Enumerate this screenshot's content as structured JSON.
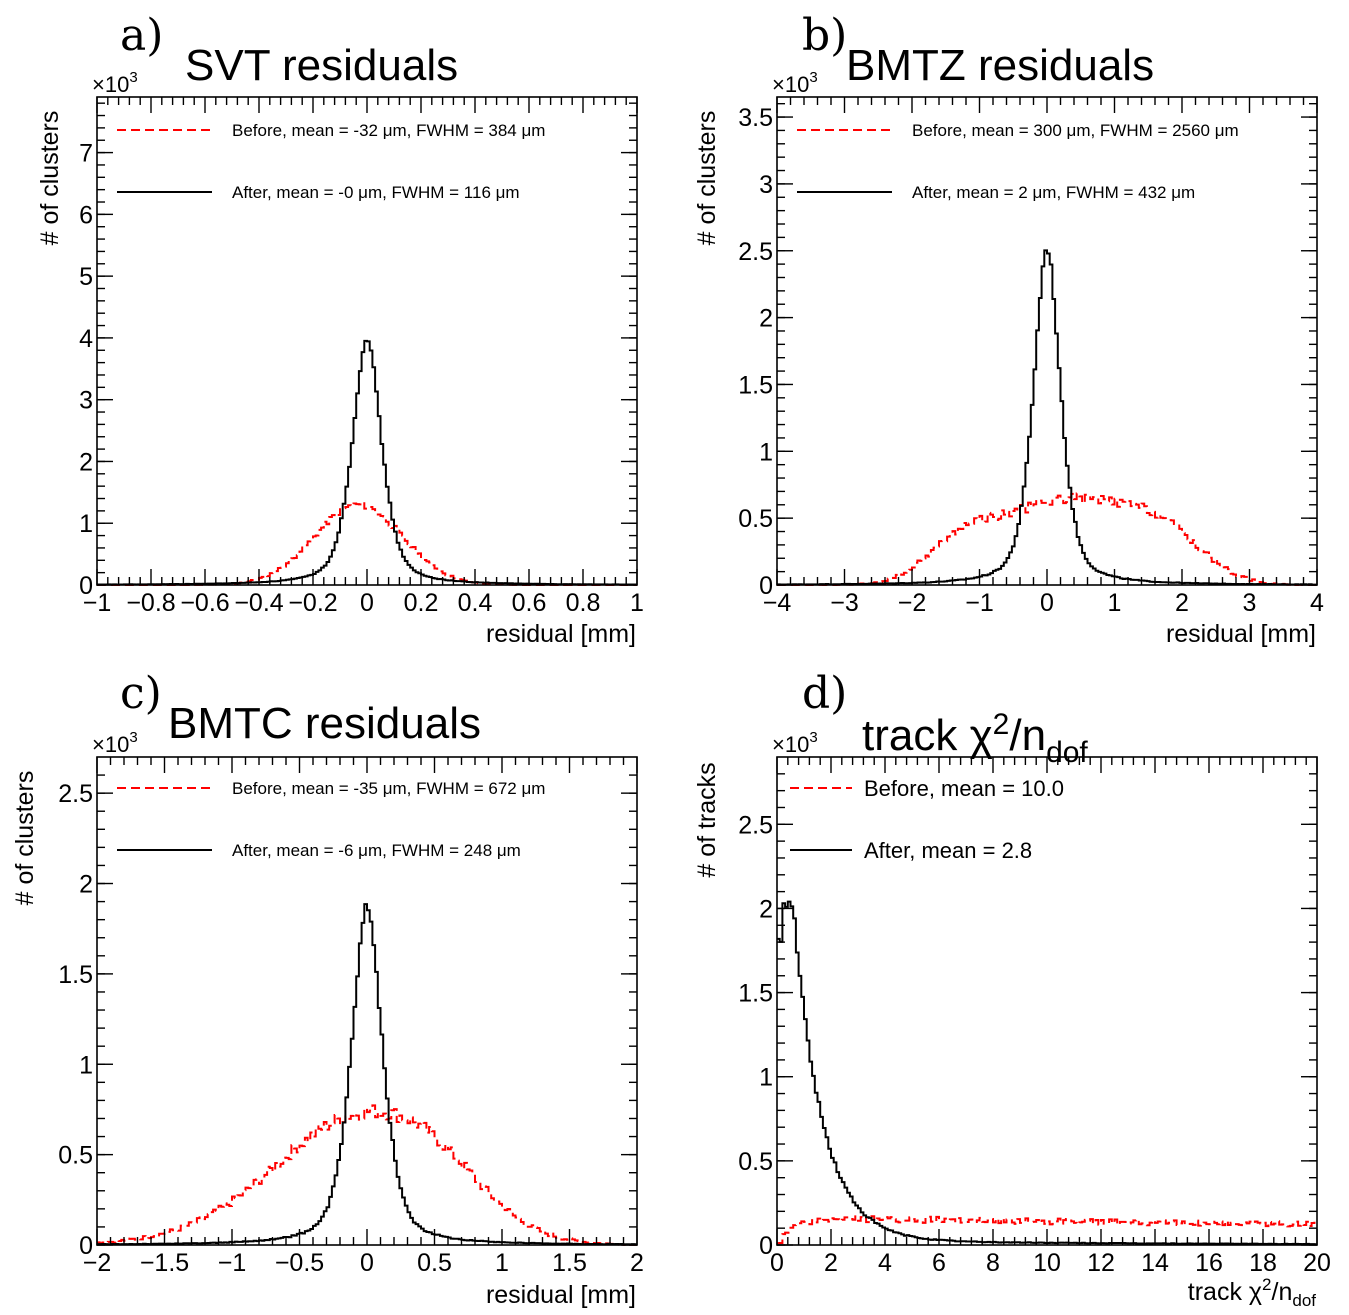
{
  "chart_data": [
    {
      "type": "histogram",
      "panel_label": "a)",
      "title": "SVT residuals",
      "xlabel": "residual [mm]",
      "ylabel": "# of clusters",
      "y_multiplier": "×10",
      "y_multiplier_exp": "3",
      "xlim": [
        -1,
        1
      ],
      "ylim": [
        0,
        7.9
      ],
      "x_ticks": [
        -1,
        -0.8,
        -0.6,
        -0.4,
        -0.2,
        0,
        0.2,
        0.4,
        0.6,
        0.8,
        1
      ],
      "x_tick_labels": [
        "−1",
        "−0.8",
        "−0.6",
        "−0.4",
        "−0.2",
        "0",
        "0.2",
        "0.4",
        "0.6",
        "0.8",
        "1"
      ],
      "y_ticks": [
        0,
        1,
        2,
        3,
        4,
        5,
        6,
        7
      ],
      "y_tick_labels": [
        "0",
        "1",
        "2",
        "3",
        "4",
        "5",
        "6",
        "7"
      ],
      "legend": "top-left inside",
      "series": [
        {
          "name": "Before, mean = -32 μm, FWHM = 384 μm",
          "color": "#ff0000",
          "style": "dashed",
          "shape": "gaussian",
          "peak": 1.3,
          "center": -0.032,
          "fwhm": 0.384
        },
        {
          "name": "After, mean = -0 μm, FWHM = 116 μm",
          "color": "#000000",
          "style": "solid",
          "shape": "peaked",
          "peak": 4.0,
          "center": 0,
          "fwhm": 0.116
        }
      ]
    },
    {
      "type": "histogram",
      "panel_label": "b)",
      "title": "BMTZ residuals",
      "xlabel": "residual [mm]",
      "ylabel": "# of clusters",
      "y_multiplier": "×10",
      "y_multiplier_exp": "3",
      "xlim": [
        -4,
        4
      ],
      "ylim": [
        0,
        3.65
      ],
      "x_ticks": [
        -4,
        -3,
        -2,
        -1,
        0,
        1,
        2,
        3,
        4
      ],
      "x_tick_labels": [
        "−4",
        "−3",
        "−2",
        "−1",
        "0",
        "1",
        "2",
        "3",
        "4"
      ],
      "y_ticks": [
        0,
        0.5,
        1,
        1.5,
        2,
        2.5,
        3,
        3.5
      ],
      "y_tick_labels": [
        "0",
        "0.5",
        "1",
        "1.5",
        "2",
        "2.5",
        "3",
        "3.5"
      ],
      "legend": "top-left inside",
      "series": [
        {
          "name": "Before, mean = 300 μm, FWHM = 2560 μm",
          "color": "#ff0000",
          "style": "dashed",
          "shape": "multi",
          "components": [
            [
              0.36,
              -1.2,
              0.55
            ],
            [
              0.48,
              0.65,
              0.75
            ],
            [
              0.33,
              1.75,
              0.6
            ],
            [
              0.27,
              -0.2,
              0.6
            ]
          ]
        },
        {
          "name": "After, mean = 2 μm, FWHM = 432 μm",
          "color": "#000000",
          "style": "solid",
          "shape": "peaked",
          "peak": 2.52,
          "center": 0.0,
          "fwhm": 0.432
        }
      ]
    },
    {
      "type": "histogram",
      "panel_label": "c)",
      "title": "BMTC residuals",
      "xlabel": "residual [mm]",
      "ylabel": "# of clusters",
      "y_multiplier": "×10",
      "y_multiplier_exp": "3",
      "xlim": [
        -2,
        2
      ],
      "ylim": [
        0,
        2.7
      ],
      "x_ticks": [
        -2,
        -1.5,
        -1,
        -0.5,
        0,
        0.5,
        1,
        1.5,
        2
      ],
      "x_tick_labels": [
        "−2",
        "−1.5",
        "−1",
        "−0.5",
        "0",
        "0.5",
        "1",
        "1.5",
        "2"
      ],
      "y_ticks": [
        0,
        0.5,
        1,
        1.5,
        2,
        2.5
      ],
      "y_tick_labels": [
        "0",
        "0.5",
        "1",
        "1.5",
        "2",
        "2.5"
      ],
      "legend": "top-left inside",
      "series": [
        {
          "name": "Before, mean = -35 μm, FWHM = 672 μm",
          "color": "#ff0000",
          "style": "dashed",
          "shape": "multi",
          "components": [
            [
              0.62,
              -0.02,
              0.6
            ],
            [
              0.14,
              0.55,
              0.35
            ],
            [
              0.1,
              -0.5,
              0.7
            ]
          ]
        },
        {
          "name": "After, mean = -6 μm, FWHM = 248 μm",
          "color": "#000000",
          "style": "solid",
          "shape": "peaked",
          "peak": 1.88,
          "center": 0.0,
          "fwhm": 0.248
        }
      ]
    },
    {
      "type": "histogram",
      "panel_label": "d)",
      "title_main": "track χ",
      "title_sup": "2",
      "title_mid": "/n",
      "title_sub": "dof",
      "xlabel_main": "track χ",
      "xlabel_sup": "2",
      "xlabel_mid": "/n",
      "xlabel_sub": "dof",
      "ylabel": "# of tracks",
      "y_multiplier": "×10",
      "y_multiplier_exp": "3",
      "xlim": [
        0,
        20
      ],
      "ylim": [
        0,
        2.9
      ],
      "x_ticks": [
        0,
        2,
        4,
        6,
        8,
        10,
        12,
        14,
        16,
        18,
        20
      ],
      "x_tick_labels": [
        "0",
        "2",
        "4",
        "6",
        "8",
        "10",
        "12",
        "14",
        "16",
        "18",
        "20"
      ],
      "y_ticks": [
        0,
        0.5,
        1,
        1.5,
        2,
        2.5
      ],
      "y_tick_labels": [
        "0",
        "0.5",
        "1",
        "1.5",
        "2",
        "2.5"
      ],
      "legend": "top-left inside",
      "series": [
        {
          "name": "Before, mean = 10.0",
          "color": "#ff0000",
          "style": "dashed",
          "shape": "flat_chi2",
          "level": 0.16
        },
        {
          "name": "After, mean = 2.8",
          "color": "#000000",
          "style": "solid",
          "shape": "chi2",
          "peak": 2.0
        }
      ]
    }
  ]
}
